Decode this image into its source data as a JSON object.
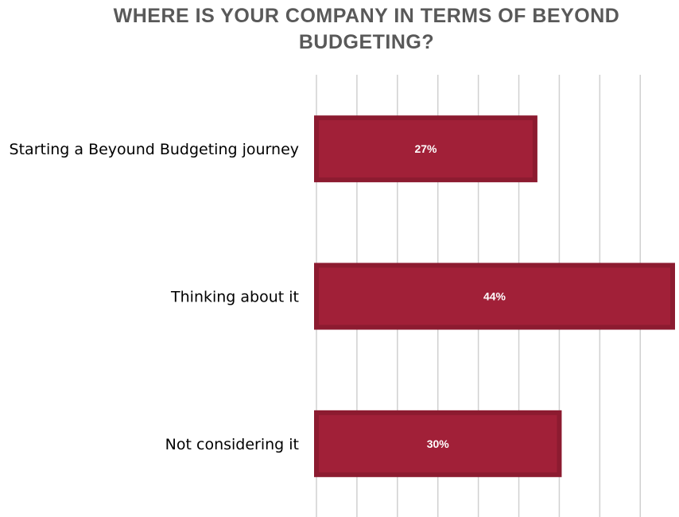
{
  "chart_data": {
    "type": "bar",
    "orientation": "horizontal",
    "title": "WHERE IS YOUR COMPANY IN TERMS OF BEYOND BUDGETING?",
    "categories": [
      "Starting a Beyound Budgeting journey",
      "Thinking about it",
      "Not considering it"
    ],
    "values": [
      27,
      44,
      30
    ],
    "data_labels": [
      "27%",
      "44%",
      "30%"
    ],
    "xlim": [
      0,
      45
    ],
    "grid": true,
    "bar_color": "#A12038",
    "bar_border_color": "#8C1B30"
  }
}
